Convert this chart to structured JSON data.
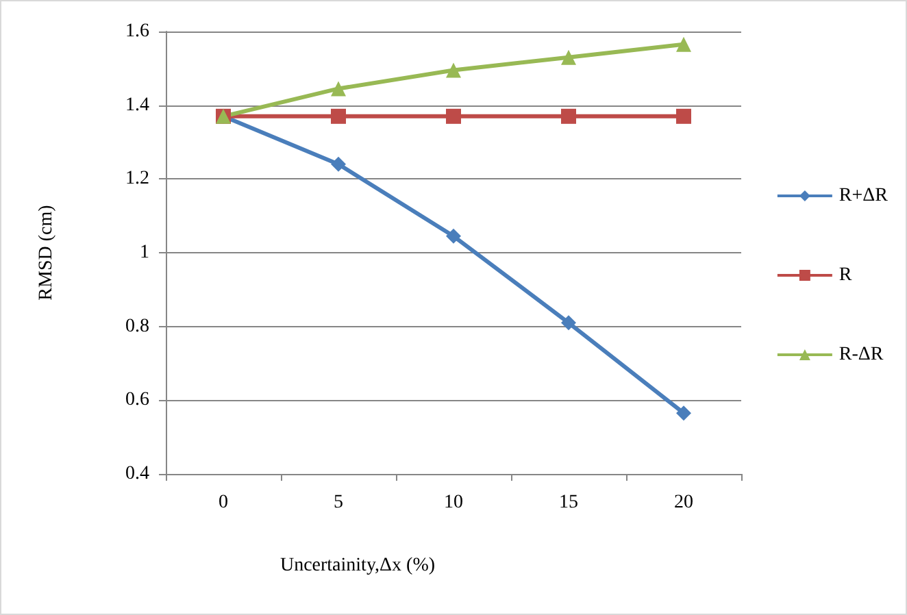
{
  "chart_data": {
    "type": "line",
    "xlabel": "Uncertainity,Δx (%)",
    "ylabel": "RMSD (cm)",
    "categories": [
      "0",
      "5",
      "10",
      "15",
      "20"
    ],
    "series": [
      {
        "name": "R+ΔR",
        "color": "#4a7ebb",
        "marker": "diamond",
        "values": [
          1.37,
          1.24,
          1.045,
          0.81,
          0.565
        ]
      },
      {
        "name": "R",
        "color": "#be4b48",
        "marker": "square",
        "values": [
          1.37,
          1.37,
          1.37,
          1.37,
          1.37
        ]
      },
      {
        "name": "R-ΔR",
        "color": "#98b954",
        "marker": "triangle",
        "values": [
          1.37,
          1.445,
          1.495,
          1.53,
          1.565
        ]
      }
    ],
    "ylim": [
      0.4,
      1.6
    ],
    "yticks": [
      0.4,
      0.6,
      0.8,
      1,
      1.2,
      1.4,
      1.6
    ],
    "grid": "y",
    "legend": "right"
  }
}
